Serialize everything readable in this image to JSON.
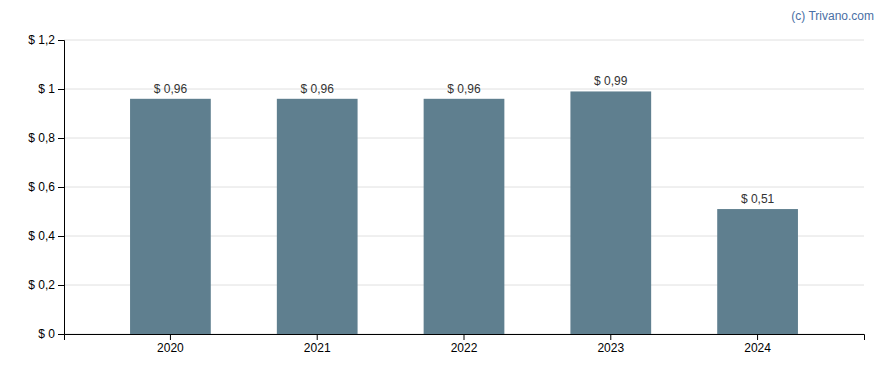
{
  "chart_data": {
    "type": "bar",
    "annotation": "(c) Trivano.com",
    "categories": [
      "2020",
      "2021",
      "2022",
      "2023",
      "2024"
    ],
    "values": [
      0.96,
      0.96,
      0.96,
      0.99,
      0.51
    ],
    "value_labels": [
      "$ 0,96",
      "$ 0,96",
      "$ 0,96",
      "$ 0,99",
      "$ 0,51"
    ],
    "data_labels": true,
    "color": "#5f7f8f",
    "ylim": [
      0,
      1.2
    ],
    "yticks": [
      {
        "value": 0.0,
        "label": "$ 0"
      },
      {
        "value": 0.2,
        "label": "$ 0,2"
      },
      {
        "value": 0.4,
        "label": "$ 0,4"
      },
      {
        "value": 0.6,
        "label": "$ 0,6"
      },
      {
        "value": 0.8,
        "label": "$ 0,8"
      },
      {
        "value": 1.0,
        "label": "$ 1"
      },
      {
        "value": 1.2,
        "label": "$ 1,2"
      }
    ],
    "grid": true
  }
}
